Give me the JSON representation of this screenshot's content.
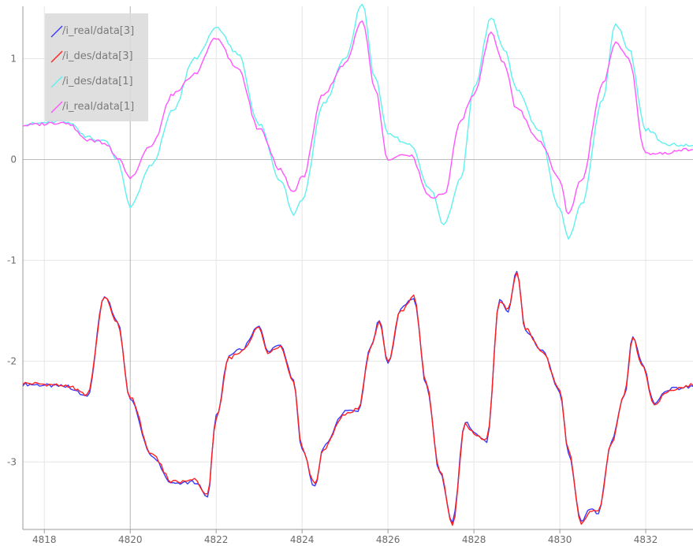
{
  "chart_data": {
    "type": "line",
    "title": "",
    "xlabel": "",
    "ylabel": "",
    "xlim": [
      4817.5,
      4833.1
    ],
    "ylim": [
      -3.67,
      1.52
    ],
    "xticks": [
      4818,
      4820,
      4822,
      4824,
      4826,
      4828,
      4830,
      4832
    ],
    "yticks": [
      -3,
      -2,
      -1,
      0,
      1
    ],
    "cursor_x": 4820.0,
    "grid": true,
    "legend_position": "top-left",
    "background": "#ffffff",
    "series": [
      {
        "name": "/i_real/data[3]",
        "color": "#3a3aff",
        "x": [
          4817.5,
          4818.5,
          4819.0,
          4819.4,
          4819.7,
          4820.0,
          4820.5,
          4821.0,
          4821.5,
          4821.8,
          4822.0,
          4822.3,
          4822.6,
          4823.0,
          4823.2,
          4823.5,
          4823.8,
          4824.0,
          4824.3,
          4824.5,
          4825.0,
          4825.3,
          4825.6,
          4825.8,
          4826.0,
          4826.3,
          4826.6,
          4826.9,
          4827.2,
          4827.5,
          4827.8,
          4828.0,
          4828.3,
          4828.6,
          4828.8,
          4829.0,
          4829.2,
          4829.6,
          4830.0,
          4830.2,
          4830.5,
          4830.7,
          4830.9,
          4831.2,
          4831.5,
          4831.7,
          4831.9,
          4832.2,
          4832.5,
          4833.1
        ],
        "y": [
          -2.23,
          -2.25,
          -2.35,
          -1.35,
          -1.6,
          -2.38,
          -2.95,
          -3.22,
          -3.2,
          -3.34,
          -2.55,
          -1.95,
          -1.88,
          -1.65,
          -1.9,
          -1.84,
          -2.2,
          -2.88,
          -3.25,
          -2.85,
          -2.5,
          -2.5,
          -1.85,
          -1.6,
          -2.02,
          -1.48,
          -1.38,
          -2.25,
          -3.1,
          -3.6,
          -2.6,
          -2.7,
          -2.8,
          -1.38,
          -1.5,
          -1.1,
          -1.7,
          -1.9,
          -2.3,
          -2.9,
          -3.6,
          -3.48,
          -3.5,
          -2.8,
          -2.35,
          -1.75,
          -2.0,
          -2.42,
          -2.28,
          -2.25
        ]
      },
      {
        "name": "/i_des/data[3]",
        "color": "#ff2020",
        "x": [
          4817.5,
          4818.5,
          4819.0,
          4819.4,
          4819.7,
          4820.0,
          4820.5,
          4821.0,
          4821.5,
          4821.8,
          4822.0,
          4822.3,
          4822.6,
          4823.0,
          4823.2,
          4823.5,
          4823.8,
          4824.0,
          4824.3,
          4824.5,
          4825.0,
          4825.3,
          4825.6,
          4825.8,
          4826.0,
          4826.3,
          4826.6,
          4826.9,
          4827.2,
          4827.5,
          4827.8,
          4828.0,
          4828.3,
          4828.6,
          4828.8,
          4829.0,
          4829.2,
          4829.6,
          4830.0,
          4830.2,
          4830.5,
          4830.7,
          4830.9,
          4831.2,
          4831.5,
          4831.7,
          4831.9,
          4832.2,
          4832.5,
          4833.1
        ],
        "y": [
          -2.22,
          -2.24,
          -2.33,
          -1.37,
          -1.62,
          -2.36,
          -2.93,
          -3.2,
          -3.18,
          -3.32,
          -2.57,
          -1.97,
          -1.9,
          -1.67,
          -1.92,
          -1.86,
          -2.22,
          -2.86,
          -3.23,
          -2.87,
          -2.52,
          -2.48,
          -1.87,
          -1.62,
          -2.0,
          -1.5,
          -1.36,
          -2.23,
          -3.08,
          -3.62,
          -2.62,
          -2.72,
          -2.78,
          -1.4,
          -1.48,
          -1.12,
          -1.68,
          -1.92,
          -2.28,
          -2.88,
          -3.62,
          -3.5,
          -3.48,
          -2.82,
          -2.33,
          -1.77,
          -2.02,
          -2.44,
          -2.3,
          -2.24
        ]
      },
      {
        "name": "/i_des/data[1]",
        "color": "#5ff0f0",
        "x": [
          4817.5,
          4818.5,
          4819.0,
          4819.4,
          4819.7,
          4820.0,
          4820.5,
          4821.0,
          4821.5,
          4822.0,
          4822.5,
          4823.0,
          4823.5,
          4823.8,
          4824.0,
          4824.5,
          4825.0,
          4825.4,
          4825.7,
          4826.0,
          4826.5,
          4827.0,
          4827.3,
          4827.7,
          4828.0,
          4828.4,
          4828.7,
          4829.0,
          4829.5,
          4830.0,
          4830.2,
          4830.5,
          4831.0,
          4831.3,
          4831.6,
          4832.0,
          4832.5,
          4833.1
        ],
        "y": [
          0.35,
          0.38,
          0.22,
          0.18,
          0.0,
          -0.47,
          -0.05,
          0.5,
          1.0,
          1.3,
          1.05,
          0.35,
          -0.2,
          -0.55,
          -0.4,
          0.55,
          1.0,
          1.55,
          0.8,
          0.25,
          0.15,
          -0.3,
          -0.65,
          -0.2,
          0.7,
          1.4,
          1.1,
          0.7,
          0.3,
          -0.5,
          -0.78,
          -0.45,
          0.6,
          1.35,
          1.1,
          0.3,
          0.15,
          0.14
        ]
      },
      {
        "name": "/i_real/data[1]",
        "color": "#ff55ff",
        "x": [
          4817.5,
          4818.5,
          4819.0,
          4819.4,
          4819.7,
          4820.0,
          4820.5,
          4821.0,
          4821.5,
          4822.0,
          4822.5,
          4823.0,
          4823.5,
          4823.8,
          4824.0,
          4824.5,
          4825.0,
          4825.4,
          4825.7,
          4826.0,
          4826.5,
          4827.0,
          4827.3,
          4827.7,
          4828.0,
          4828.4,
          4828.7,
          4829.0,
          4829.5,
          4830.0,
          4830.2,
          4830.5,
          4831.0,
          4831.3,
          4831.6,
          4832.0,
          4832.5,
          4833.1
        ],
        "y": [
          0.34,
          0.37,
          0.2,
          0.17,
          0.02,
          -0.18,
          0.15,
          0.65,
          0.85,
          1.2,
          0.9,
          0.3,
          -0.1,
          -0.32,
          -0.18,
          0.65,
          0.95,
          1.38,
          0.7,
          0.0,
          0.05,
          -0.38,
          -0.35,
          0.4,
          0.65,
          1.25,
          0.95,
          0.5,
          0.2,
          -0.2,
          -0.55,
          -0.2,
          0.75,
          1.15,
          1.0,
          0.05,
          0.07,
          0.1
        ]
      }
    ]
  }
}
